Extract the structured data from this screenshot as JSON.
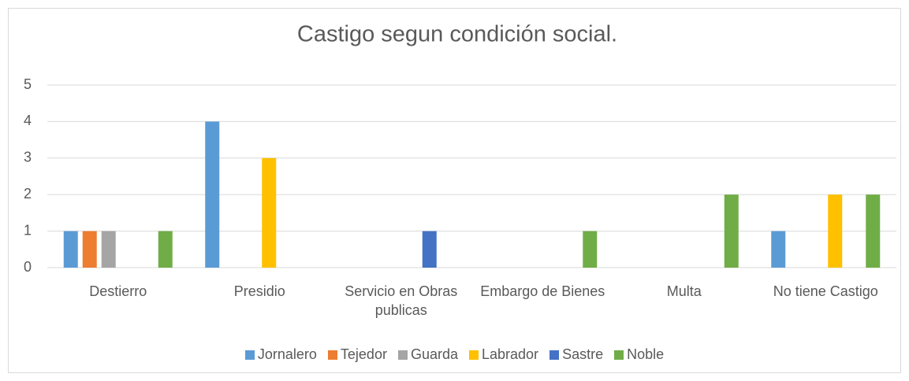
{
  "chart_data": {
    "type": "bar",
    "title": "Castigo segun condición social.",
    "categories": [
      "Destierro",
      "Presidio",
      "Servicio en Obras publicas",
      "Embargo de Bienes",
      "Multa",
      "No tiene Castigo"
    ],
    "series": [
      {
        "name": "Jornalero",
        "color": "#5b9bd5",
        "values": [
          1,
          4,
          0,
          0,
          0,
          1
        ]
      },
      {
        "name": "Tejedor",
        "color": "#ed7d31",
        "values": [
          1,
          0,
          0,
          0,
          0,
          0
        ]
      },
      {
        "name": "Guarda",
        "color": "#a5a5a5",
        "values": [
          1,
          0,
          0,
          0,
          0,
          0
        ]
      },
      {
        "name": "Labrador",
        "color": "#ffc000",
        "values": [
          0,
          3,
          0,
          0,
          0,
          2
        ]
      },
      {
        "name": "Sastre",
        "color": "#4472c4",
        "values": [
          0,
          0,
          1,
          0,
          0,
          0
        ]
      },
      {
        "name": "Noble",
        "color": "#70ad47",
        "values": [
          1,
          0,
          0,
          1,
          2,
          2
        ]
      }
    ],
    "ylim": [
      0,
      5
    ],
    "yticks": [
      0,
      1,
      2,
      3,
      4,
      5
    ],
    "grid": true,
    "legend": "bottom"
  }
}
